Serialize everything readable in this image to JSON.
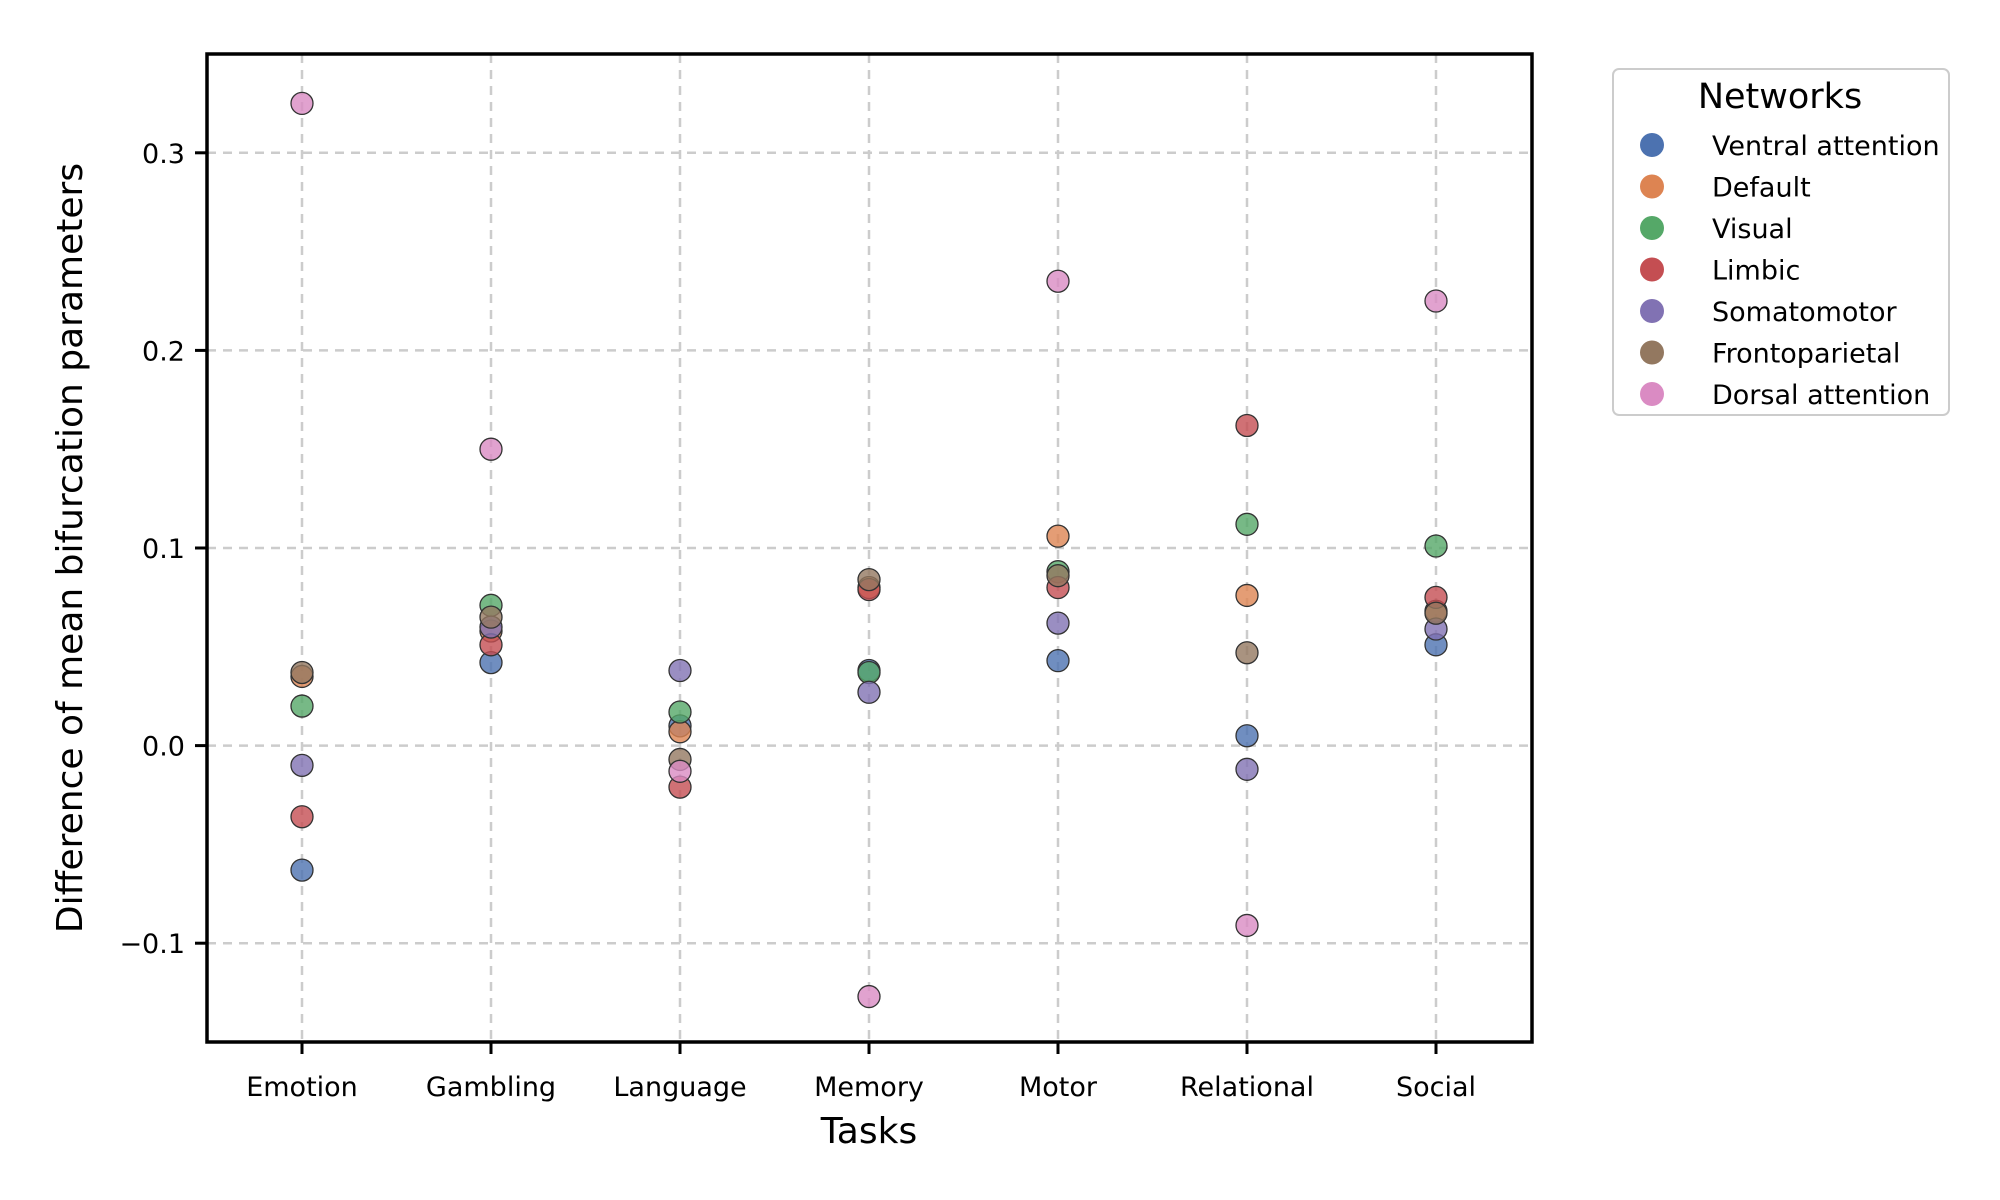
{
  "chart_data": {
    "type": "scatter",
    "title": "",
    "xlabel": "Tasks",
    "ylabel": "Difference of mean bifurcation parameters",
    "categories": [
      "Emotion",
      "Gambling",
      "Language",
      "Memory",
      "Motor",
      "Relational",
      "Social"
    ],
    "ylim": [
      -0.15,
      0.35
    ],
    "yticks": [
      -0.1,
      0.0,
      0.1,
      0.2,
      0.3
    ],
    "ytick_labels": [
      "−0.1",
      "0.0",
      "0.1",
      "0.2",
      "0.3"
    ],
    "grid": true,
    "legend": {
      "title": "Networks",
      "placement": "upper-right-outside"
    },
    "series": [
      {
        "name": "Ventral attention",
        "color": "#4C72B0",
        "values": [
          -0.063,
          0.042,
          0.01,
          0.038,
          0.043,
          0.005,
          0.051
        ]
      },
      {
        "name": "Default",
        "color": "#DD8452",
        "values": [
          0.035,
          0.058,
          0.007,
          0.08,
          0.106,
          0.076,
          0.068
        ]
      },
      {
        "name": "Visual",
        "color": "#55A868",
        "values": [
          0.02,
          0.071,
          0.017,
          0.037,
          0.088,
          0.112,
          0.101
        ]
      },
      {
        "name": "Limbic",
        "color": "#C44E52",
        "values": [
          -0.036,
          0.051,
          -0.021,
          0.079,
          0.08,
          0.162,
          0.075
        ]
      },
      {
        "name": "Somatomotor",
        "color": "#8172B3",
        "values": [
          -0.01,
          0.06,
          0.038,
          0.027,
          0.062,
          -0.012,
          0.059
        ]
      },
      {
        "name": "Frontoparietal",
        "color": "#937860",
        "values": [
          0.037,
          0.065,
          -0.007,
          0.084,
          0.086,
          0.047,
          0.067
        ]
      },
      {
        "name": "Dorsal attention",
        "color": "#DA8BC3",
        "values": [
          0.325,
          0.15,
          -0.013,
          -0.127,
          0.235,
          -0.091,
          0.225
        ]
      }
    ]
  }
}
